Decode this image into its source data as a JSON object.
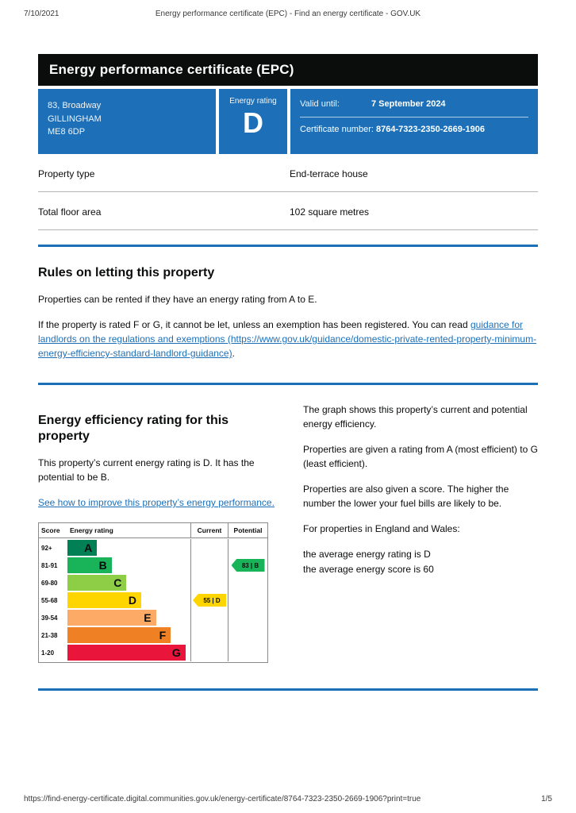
{
  "colors": {
    "govuk_blue": "#1d70b8",
    "banner_black": "#0b0c0c"
  },
  "print_header": {
    "date": "7/10/2021",
    "title": "Energy performance certificate (EPC) - Find an energy certificate - GOV.UK"
  },
  "banner": {
    "title": "Energy performance certificate (EPC)"
  },
  "summary": {
    "address_lines": [
      "83, Broadway",
      "GILLINGHAM",
      "ME8 6DP"
    ],
    "energy_rating_label": "Energy rating",
    "energy_rating": "D",
    "valid_until_label": "Valid until:",
    "valid_until_value": "7 September 2024",
    "certificate_number_label": "Certificate number:",
    "certificate_number_value": "8764-7323-2350-2669-1906"
  },
  "property_details": {
    "rows": [
      {
        "label": "Property type",
        "value": "End-terrace house"
      },
      {
        "label": "Total floor area",
        "value": "102 square metres"
      }
    ]
  },
  "letting_rules": {
    "heading": "Rules on letting this property",
    "paragraph1": "Properties can be rented if they have an energy rating from A to E.",
    "paragraph2_prefix": "If the property is rated F or G, it cannot be let, unless an exemption has been registered. You can read ",
    "paragraph2_link_text": "guidance for landlords on the regulations and exemptions (https://www.gov.uk/guidance/domestic-private-rented-property-minimum-energy-efficiency-standard-landlord-guidance)",
    "paragraph2_suffix": "."
  },
  "efficiency": {
    "heading": "Energy efficiency rating for this property",
    "intro": "This property’s current energy rating is D. It has the potential to be B.",
    "improve_link_text": "See how to improve this property’s energy performance.",
    "right_paragraphs": [
      "The graph shows this property’s current and potential energy efficiency.",
      "Properties are given a rating from A (most efficient) to G (least efficient).",
      "Properties are also given a score. The higher the number the lower your fuel bills are likely to be.",
      "For properties in England and Wales:",
      "the average energy rating is D",
      "the average energy score is 60"
    ]
  },
  "chart_data": {
    "type": "epc-rating-bar",
    "headers": {
      "score": "Score",
      "rating": "Energy rating",
      "current": "Current",
      "potential": "Potential"
    },
    "bands": [
      {
        "score_range": "92+",
        "letter": "A",
        "color": "#008054",
        "width_pct": 24
      },
      {
        "score_range": "81-91",
        "letter": "B",
        "color": "#19b459",
        "width_pct": 36
      },
      {
        "score_range": "69-80",
        "letter": "C",
        "color": "#8dce46",
        "width_pct": 48
      },
      {
        "score_range": "55-68",
        "letter": "D",
        "color": "#ffd500",
        "width_pct": 60
      },
      {
        "score_range": "39-54",
        "letter": "E",
        "color": "#fcaa65",
        "width_pct": 72
      },
      {
        "score_range": "21-38",
        "letter": "F",
        "color": "#ef8023",
        "width_pct": 84
      },
      {
        "score_range": "1-20",
        "letter": "G",
        "color": "#e9153b",
        "width_pct": 96
      }
    ],
    "current": {
      "score": 55,
      "letter": "D",
      "band_index": 3,
      "color": "#ffd500"
    },
    "potential": {
      "score": 83,
      "letter": "B",
      "band_index": 1,
      "color": "#19b459"
    }
  },
  "footer": {
    "url": "https://find-energy-certificate.digital.communities.gov.uk/energy-certificate/8764-7323-2350-2669-1906?print=true",
    "page_indicator": "1/5"
  }
}
